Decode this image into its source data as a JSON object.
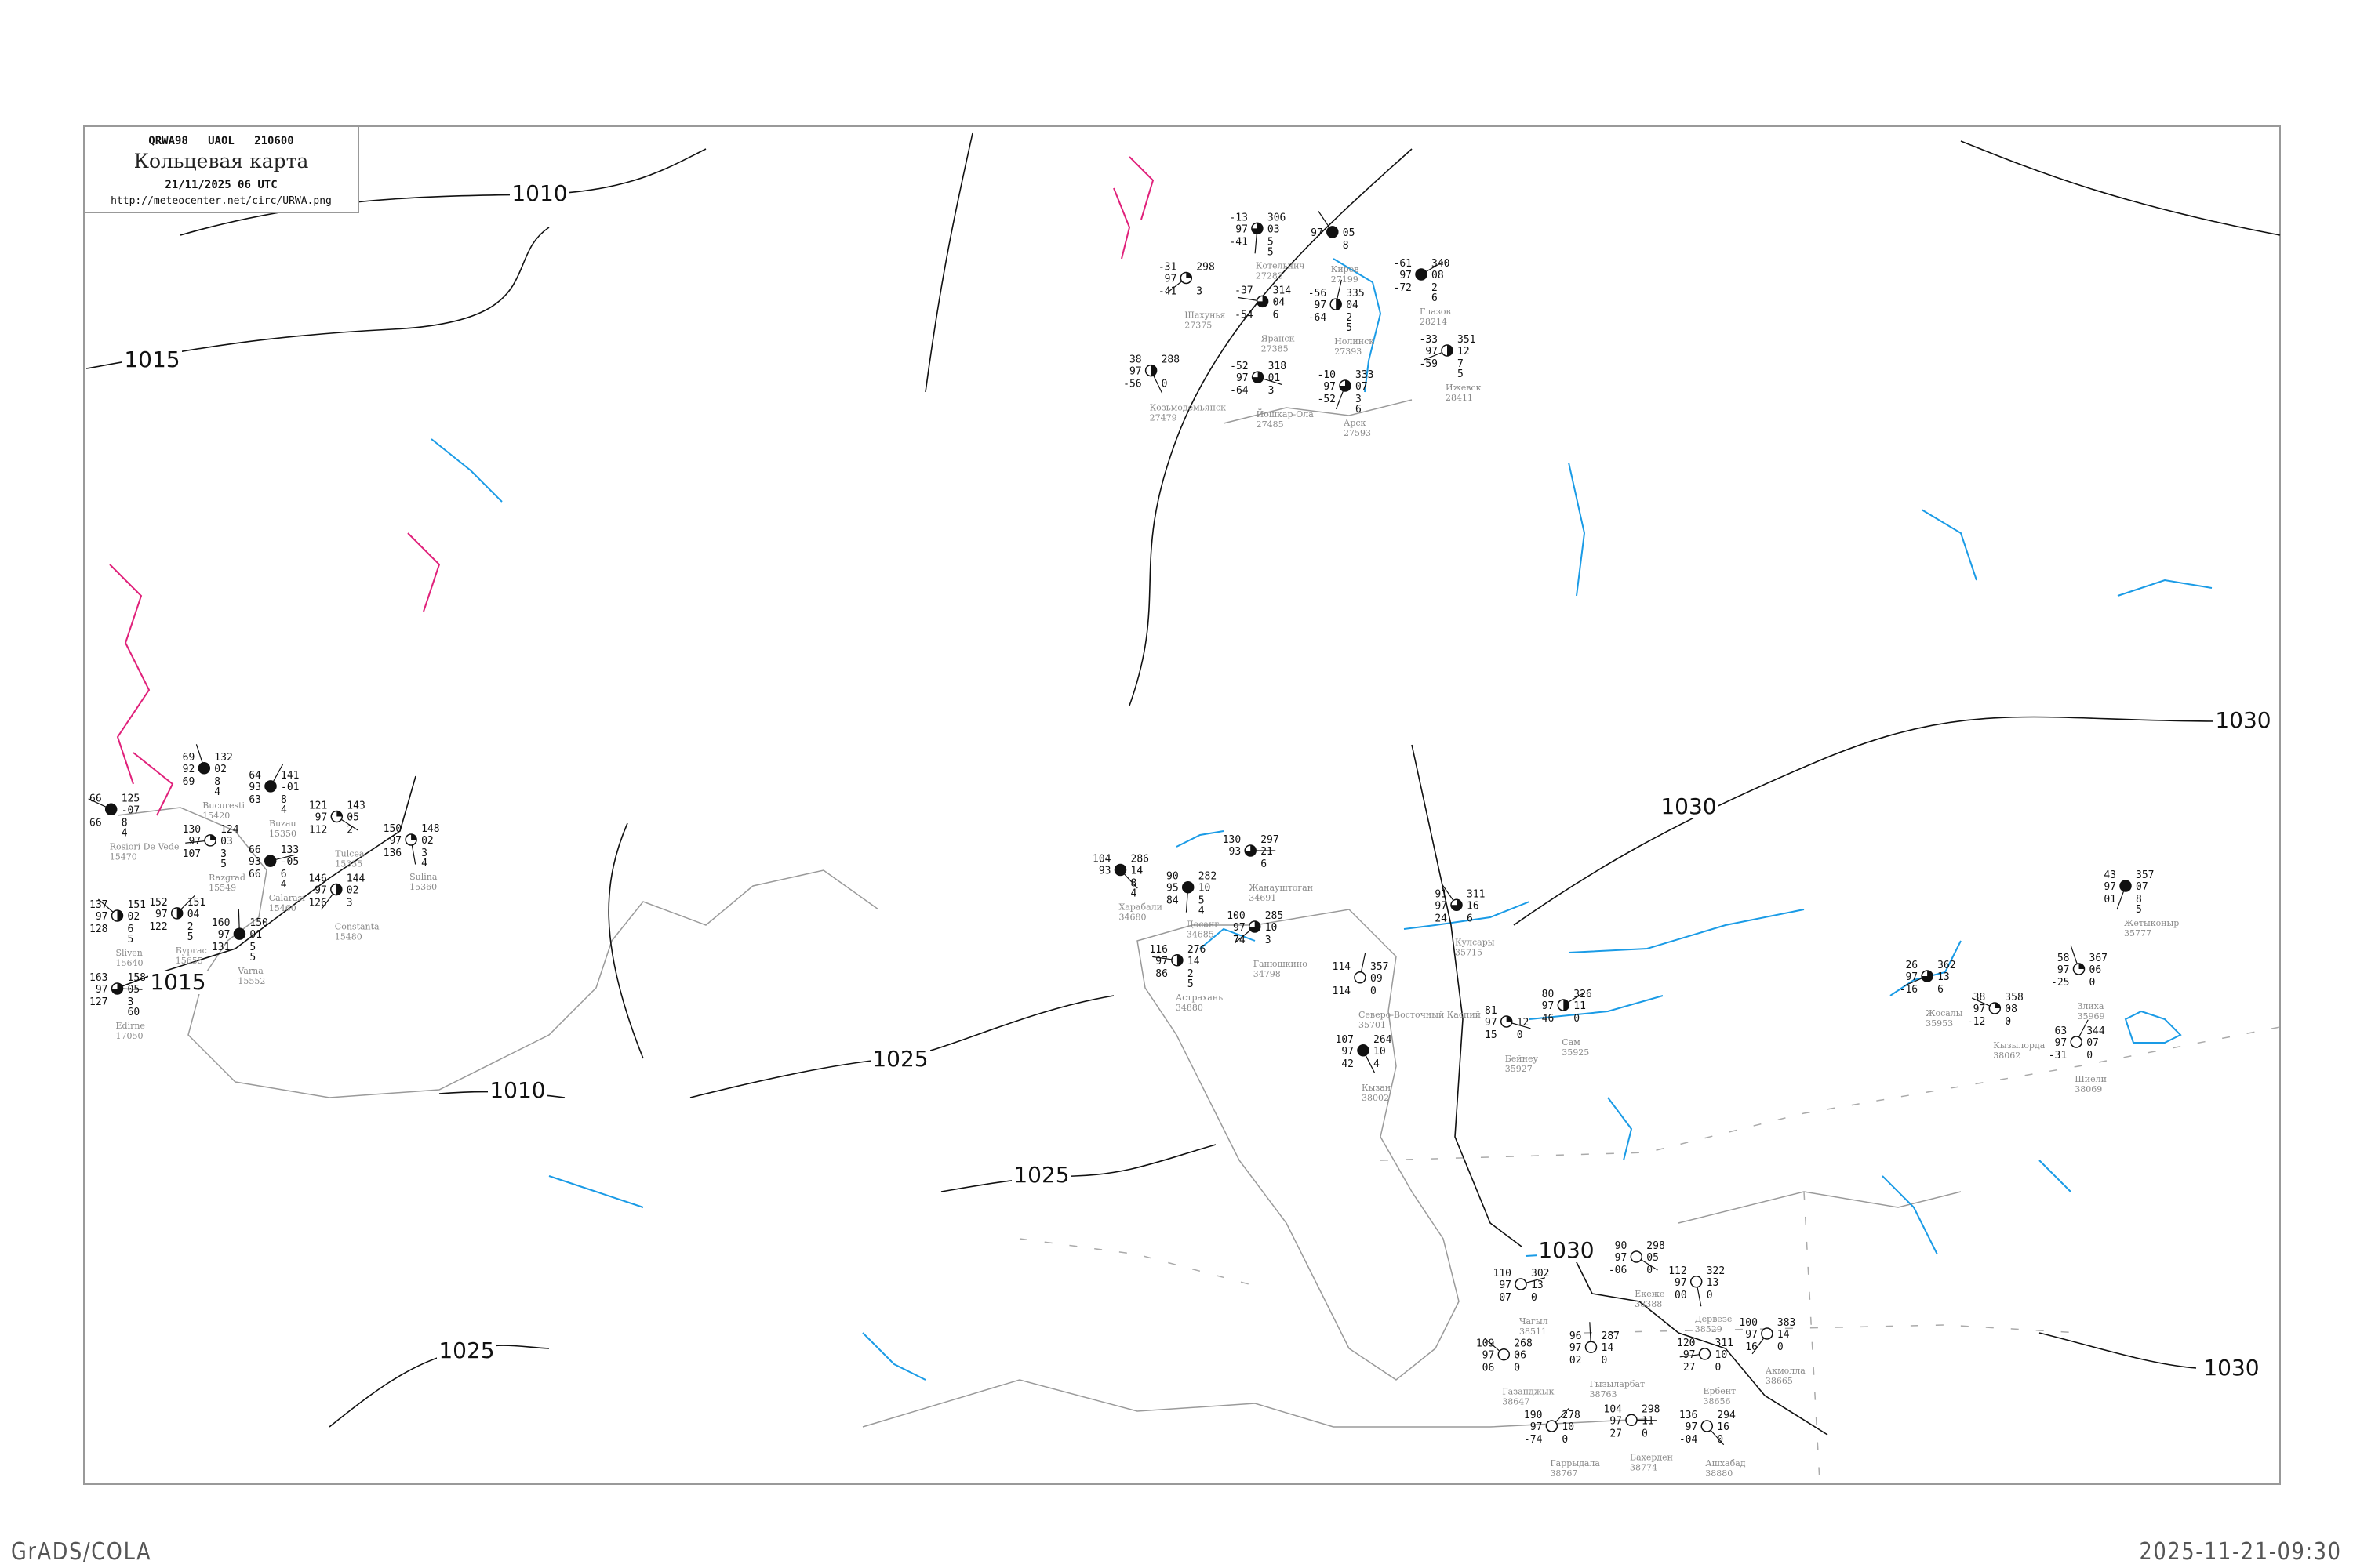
{
  "header": {
    "code": "QRWA98   UAOL   210600",
    "title": "Кольцевая карта",
    "date": "21/11/2025 06 UTC",
    "url": "http://meteocenter.net/circ/URWA.png"
  },
  "footer": {
    "left": "GrADS/COLA",
    "right": "2025-11-21-09:30"
  },
  "colors": {
    "isobar": "#111111",
    "isotherm": "#1a9be6",
    "coastline": "#9a9a9a",
    "front": "#e0207a",
    "station_name": "#8a8a8a"
  },
  "isobar_labels": [
    "1010",
    "1015",
    "1015",
    "1010",
    "1025",
    "1025",
    "1025",
    "1030",
    "1030",
    "1030",
    "1030"
  ],
  "stations": [
    {
      "name": "Жанауштоган",
      "id": "34691",
      "cover": 0.75,
      "t": "130",
      "vis": "93",
      "td": "",
      "p": "297",
      "dp": "21",
      "r1": "6",
      "r2": ""
    },
    {
      "name": "Харабали",
      "id": "34680",
      "cover": 1,
      "t": "104",
      "vis": "93",
      "td": "",
      "p": "286",
      "dp": "14",
      "r1": "8",
      "r2": "4"
    },
    {
      "name": "Досанг",
      "id": "34685",
      "cover": 1,
      "t": "90",
      "vis": "95",
      "td": "84",
      "p": "282",
      "dp": "10",
      "r1": "5",
      "r2": "4"
    },
    {
      "name": "Ганюшкино",
      "id": "34798",
      "cover": 0.75,
      "t": "100",
      "vis": "97",
      "td": "74",
      "p": "285",
      "dp": "10",
      "r1": "3",
      "r2": ""
    },
    {
      "name": "Астрахань",
      "id": "34880",
      "cover": 0.5,
      "t": "116",
      "vis": "97",
      "td": "86",
      "p": "276",
      "dp": "14",
      "r1": "2",
      "r2": "5"
    },
    {
      "name": "Кулсары",
      "id": "35715",
      "cover": 0.75,
      "t": "91",
      "vis": "97",
      "td": "24",
      "p": "311",
      "dp": "16",
      "r1": "6",
      "r2": ""
    },
    {
      "name": "Северо-Восточный Каспий",
      "id": "35701",
      "cover": 0,
      "t": "114",
      "vis": "",
      "td": "114",
      "p": "357",
      "dp": "09",
      "r1": "0",
      "r2": ""
    },
    {
      "name": "Сам",
      "id": "35925",
      "cover": 0.5,
      "t": "80",
      "vis": "97",
      "td": "46",
      "p": "326",
      "dp": "11",
      "r1": "0",
      "r2": ""
    },
    {
      "name": "Бейнеу",
      "id": "35927",
      "cover": 0.25,
      "t": "81",
      "vis": "97",
      "td": "15",
      "p": "",
      "dp": "12",
      "r1": "0",
      "r2": ""
    },
    {
      "name": "Кызан",
      "id": "38002",
      "cover": 1,
      "t": "107",
      "vis": "97",
      "td": "42",
      "p": "264",
      "dp": "10",
      "r1": "4",
      "r2": ""
    },
    {
      "name": "Жетыконыр",
      "id": "35777",
      "cover": 1,
      "t": "43",
      "vis": "97",
      "td": "01",
      "p": "357",
      "dp": "07",
      "r1": "8",
      "r2": "5"
    },
    {
      "name": "Жосалы",
      "id": "35953",
      "cover": 0.75,
      "t": "26",
      "vis": "97",
      "td": "-16",
      "p": "362",
      "dp": "13",
      "r1": "6",
      "r2": ""
    },
    {
      "name": "Кызылорда",
      "id": "38062",
      "cover": 0.25,
      "t": "38",
      "vis": "97",
      "td": "-12",
      "p": "358",
      "dp": "08",
      "r1": "0",
      "r2": ""
    },
    {
      "name": "Злиха",
      "id": "35969",
      "cover": 0.25,
      "t": "58",
      "vis": "97",
      "td": "-25",
      "p": "367",
      "dp": "06",
      "r1": "0",
      "r2": ""
    },
    {
      "name": "Шиели",
      "id": "38069",
      "cover": 0,
      "t": "63",
      "vis": "97",
      "td": "-31",
      "p": "344",
      "dp": "07",
      "r1": "0",
      "r2": ""
    },
    {
      "name": "Чагыл",
      "id": "38511",
      "cover": 0,
      "t": "110",
      "vis": "97",
      "td": "07",
      "p": "302",
      "dp": "13",
      "r1": "0",
      "r2": ""
    },
    {
      "name": "Екеже",
      "id": "38388",
      "cover": 0,
      "t": "90",
      "vis": "97",
      "td": "-06",
      "p": "298",
      "dp": "05",
      "r1": "0",
      "r2": ""
    },
    {
      "name": "Дервезе",
      "id": "38529",
      "cover": 0,
      "t": "112",
      "vis": "97",
      "td": "00",
      "p": "322",
      "dp": "13",
      "r1": "0",
      "r2": ""
    },
    {
      "name": "Акмолла",
      "id": "38665",
      "cover": 0,
      "t": "100",
      "vis": "97",
      "td": "16",
      "p": "383",
      "dp": "14",
      "r1": "0",
      "r2": ""
    },
    {
      "name": "Ербент",
      "id": "38656",
      "cover": 0,
      "t": "120",
      "vis": "97",
      "td": "27",
      "p": "311",
      "dp": "10",
      "r1": "0",
      "r2": ""
    },
    {
      "name": "Газанджык",
      "id": "38647",
      "cover": 0,
      "t": "109",
      "vis": "97",
      "td": "06",
      "p": "268",
      "dp": "06",
      "r1": "0",
      "r2": ""
    },
    {
      "name": "Гызыларбат",
      "id": "38763",
      "cover": 0,
      "t": "96",
      "vis": "97",
      "td": "02",
      "p": "287",
      "dp": "14",
      "r1": "0",
      "r2": ""
    },
    {
      "name": "Гаррыдала",
      "id": "38767",
      "cover": 0,
      "t": "190",
      "vis": "97",
      "td": "-74",
      "p": "278",
      "dp": "10",
      "r1": "0",
      "r2": ""
    },
    {
      "name": "Бахерден",
      "id": "38774",
      "cover": 0,
      "t": "104",
      "vis": "97",
      "td": "27",
      "p": "298",
      "dp": "11",
      "r1": "0",
      "r2": ""
    },
    {
      "name": "Ашхабад",
      "id": "38880",
      "cover": 0,
      "t": "136",
      "vis": "97",
      "td": "-04",
      "p": "294",
      "dp": "16",
      "r1": "0",
      "r2": ""
    },
    {
      "name": "Котельнич",
      "id": "27283",
      "cover": 0.75,
      "t": "-13",
      "vis": "97",
      "td": "-41",
      "p": "306",
      "dp": "03",
      "r1": "5",
      "r2": "5"
    },
    {
      "name": "Шахунья",
      "id": "27375",
      "cover": 0.25,
      "t": "-31",
      "vis": "97",
      "td": "-41",
      "p": "298",
      "dp": "",
      "r1": "3",
      "r2": ""
    },
    {
      "name": "Яранск",
      "id": "27385",
      "cover": 0.75,
      "t": "-37",
      "vis": "",
      "td": "-54",
      "p": "314",
      "dp": "04",
      "r1": "6",
      "r2": ""
    },
    {
      "name": "Киров",
      "id": "27199",
      "cover": 1,
      "t": "",
      "vis": "97",
      "td": "",
      "p": "",
      "dp": "05",
      "r1": "8",
      "r2": ""
    },
    {
      "name": "Нолинск",
      "id": "27393",
      "cover": 0.5,
      "t": "-56",
      "vis": "97",
      "td": "-64",
      "p": "335",
      "dp": "04",
      "r1": "2",
      "r2": "5"
    },
    {
      "name": "Глазов",
      "id": "28214",
      "cover": 1,
      "t": "-61",
      "vis": "97",
      "td": "-72",
      "p": "340",
      "dp": "08",
      "r1": "2",
      "r2": "6"
    },
    {
      "name": "Йошкар-Ола",
      "id": "27485",
      "cover": 0.75,
      "t": "-52",
      "vis": "97",
      "td": "-64",
      "p": "318",
      "dp": "01",
      "r1": "3",
      "r2": ""
    },
    {
      "name": "Козьмодемьянск",
      "id": "27479",
      "cover": 0.5,
      "t": "38",
      "vis": "97",
      "td": "-56",
      "p": "288",
      "dp": "",
      "r1": "0",
      "r2": ""
    },
    {
      "name": "Арск",
      "id": "27593",
      "cover": 0.75,
      "t": "-10",
      "vis": "97",
      "td": "-52",
      "p": "333",
      "dp": "07",
      "r1": "3",
      "r2": "6"
    },
    {
      "name": "Ижевск",
      "id": "28411",
      "cover": 0.5,
      "t": "-33",
      "vis": "97",
      "td": "-59",
      "p": "351",
      "dp": "12",
      "r1": "7",
      "r2": "5"
    },
    {
      "name": "Rosiori De Vede",
      "id": "15470",
      "cover": 1,
      "t": "66",
      "vis": "",
      "td": "66",
      "p": "125",
      "dp": "-07",
      "r1": "8",
      "r2": "4"
    },
    {
      "name": "Bucuresti",
      "id": "15420",
      "cover": 1,
      "t": "69",
      "vis": "92",
      "td": "69",
      "p": "132",
      "dp": "02",
      "r1": "8",
      "r2": "4"
    },
    {
      "name": "Buzau",
      "id": "15350",
      "cover": 1,
      "t": "64",
      "vis": "93",
      "td": "63",
      "p": "141",
      "dp": "-01",
      "r1": "8",
      "r2": "4"
    },
    {
      "name": "Calarasi",
      "id": "15460",
      "cover": 1,
      "t": "66",
      "vis": "93",
      "td": "66",
      "p": "133",
      "dp": "-05",
      "r1": "6",
      "r2": "4"
    },
    {
      "name": "Tulcea",
      "id": "15335",
      "cover": 0.25,
      "t": "121",
      "vis": "97",
      "td": "112",
      "p": "143",
      "dp": "05",
      "r1": "2",
      "r2": ""
    },
    {
      "name": "Sulina",
      "id": "15360",
      "cover": 0.25,
      "t": "150",
      "vis": "97",
      "td": "136",
      "p": "148",
      "dp": "02",
      "r1": "3",
      "r2": "4"
    },
    {
      "name": "Constanta",
      "id": "15480",
      "cover": 0.5,
      "t": "146",
      "vis": "97",
      "td": "126",
      "p": "144",
      "dp": "02",
      "r1": "3",
      "r2": ""
    },
    {
      "name": "Razgrad",
      "id": "15549",
      "cover": 0.25,
      "t": "130",
      "vis": "97",
      "td": "107",
      "p": "124",
      "dp": "03",
      "r1": "3",
      "r2": "5"
    },
    {
      "name": "Sliven",
      "id": "15640",
      "cover": 0.5,
      "t": "137",
      "vis": "97",
      "td": "128",
      "p": "151",
      "dp": "02",
      "r1": "6",
      "r2": "5"
    },
    {
      "name": "Varna",
      "id": "15552",
      "cover": 1,
      "t": "160",
      "vis": "97",
      "td": "131",
      "p": "150",
      "dp": "01",
      "r1": "5",
      "r2": "5"
    },
    {
      "name": "Бургас",
      "id": "15655",
      "cover": 0.5,
      "t": "152",
      "vis": "97",
      "td": "122",
      "p": "151",
      "dp": "04",
      "r1": "2",
      "r2": "5"
    },
    {
      "name": "Edirne",
      "id": "17050",
      "cover": 0.75,
      "t": "163",
      "vis": "97",
      "td": "127",
      "p": "158",
      "dp": "05",
      "r1": "3",
      "r2": "60"
    }
  ]
}
